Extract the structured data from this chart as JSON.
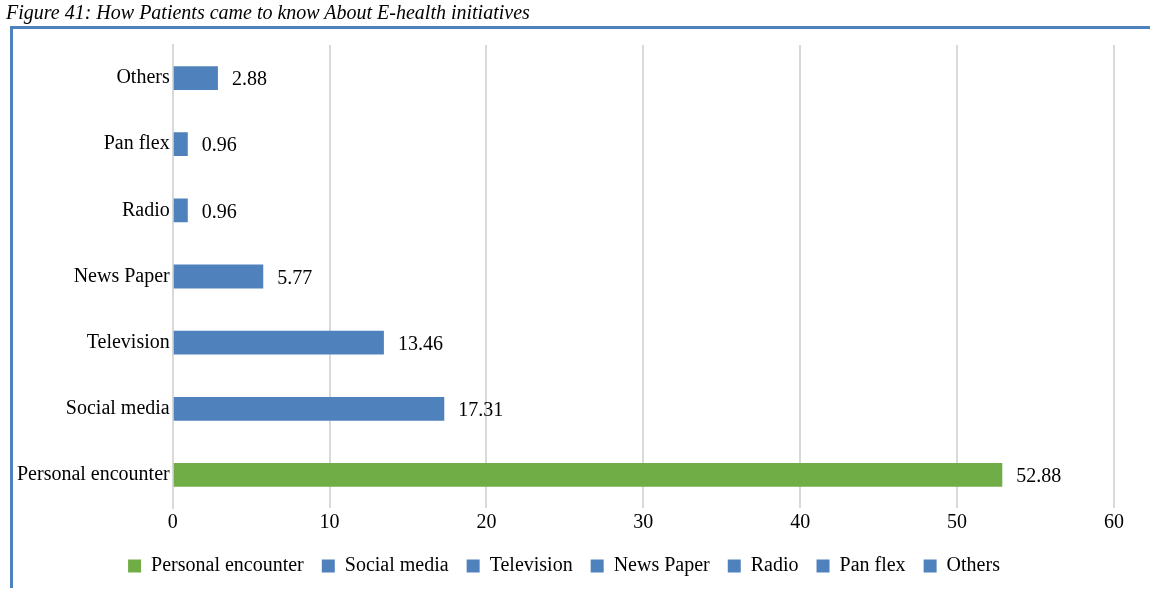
{
  "chart_data": {
    "type": "bar",
    "orientation": "horizontal",
    "title": "Figure 41: How Patients came to know About E-health initiatives",
    "categories": [
      "Others",
      "Pan flex",
      "Radio",
      "News Paper",
      "Television",
      "Social media",
      "Personal encounter"
    ],
    "series": [
      {
        "name": "Personal encounter",
        "color": "#70ad47",
        "values": [
          null,
          null,
          null,
          null,
          null,
          null,
          52.88
        ]
      },
      {
        "name": "Social media",
        "color": "#4f81bd",
        "values": [
          null,
          null,
          null,
          null,
          null,
          17.31,
          null
        ]
      },
      {
        "name": "Television",
        "color": "#4f81bd",
        "values": [
          null,
          null,
          null,
          null,
          13.46,
          null,
          null
        ]
      },
      {
        "name": "News Paper",
        "color": "#4f81bd",
        "values": [
          null,
          null,
          null,
          5.77,
          null,
          null,
          null
        ]
      },
      {
        "name": "Radio",
        "color": "#4f81bd",
        "values": [
          null,
          null,
          0.96,
          null,
          null,
          null,
          null
        ]
      },
      {
        "name": "Pan flex",
        "color": "#4f81bd",
        "values": [
          null,
          0.96,
          null,
          null,
          null,
          null,
          null
        ]
      },
      {
        "name": "Others",
        "color": "#4f81bd",
        "values": [
          2.88,
          null,
          null,
          null,
          null,
          null,
          null
        ]
      }
    ],
    "xlim": [
      0,
      60
    ],
    "xticks": [
      0,
      10,
      20,
      30,
      40,
      50,
      60
    ],
    "grid": "x",
    "legend": "bottom",
    "data_labels": true
  }
}
